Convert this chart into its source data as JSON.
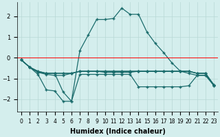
{
  "xlabel": "Humidex (Indice chaleur)",
  "bg_color": "#d4eeed",
  "grid_color": "#b8d8d5",
  "line_color": "#1a6b6b",
  "xlim": [
    -0.5,
    23.5
  ],
  "ylim": [
    -2.6,
    2.7
  ],
  "yticks": [
    -2,
    -1,
    0,
    1,
    2
  ],
  "xticks": [
    0,
    1,
    2,
    3,
    4,
    5,
    6,
    7,
    8,
    9,
    10,
    11,
    12,
    13,
    14,
    15,
    16,
    17,
    18,
    19,
    20,
    21,
    22,
    23
  ],
  "line1_x": [
    0,
    1,
    2,
    3,
    4,
    5,
    6,
    7,
    8,
    9,
    10,
    11,
    12,
    13,
    14,
    15,
    16,
    17,
    18,
    19,
    20,
    21,
    22,
    23
  ],
  "line1_y": [
    -0.1,
    -0.45,
    -0.65,
    -0.75,
    -0.75,
    -0.75,
    -0.75,
    -0.65,
    -0.65,
    -0.65,
    -0.65,
    -0.65,
    -0.65,
    -0.65,
    -0.65,
    -0.65,
    -0.65,
    -0.65,
    -0.65,
    -0.65,
    -0.65,
    -0.75,
    -0.75,
    -1.3
  ],
  "line2_x": [
    0,
    1,
    2,
    3,
    4,
    5,
    6,
    7,
    8,
    9,
    10,
    11,
    12,
    13,
    14,
    15,
    16,
    17,
    18,
    19,
    20,
    21,
    22,
    23
  ],
  "line2_y": [
    -0.1,
    -0.45,
    -0.8,
    -1.55,
    -1.6,
    -2.1,
    -2.1,
    -0.8,
    -0.8,
    -0.8,
    -0.8,
    -0.8,
    -0.8,
    -0.8,
    -1.4,
    -1.4,
    -1.4,
    -1.4,
    -1.4,
    -1.4,
    -1.35,
    -0.85,
    -0.85,
    -1.35
  ],
  "line3_x": [
    0,
    1,
    2,
    3,
    4,
    5,
    6,
    7,
    8,
    9,
    10,
    11,
    12,
    13,
    14,
    15,
    16,
    17,
    18,
    19,
    20,
    21,
    22,
    23
  ],
  "line3_y": [
    -0.1,
    -0.45,
    -0.7,
    -0.75,
    -0.75,
    -0.75,
    -0.75,
    -0.65,
    -0.65,
    -0.65,
    -0.65,
    -0.65,
    -0.65,
    -0.65,
    -0.65,
    -0.65,
    -0.65,
    -0.65,
    -0.65,
    -0.65,
    -0.65,
    -0.75,
    -0.75,
    -1.35
  ],
  "line4_x": [
    0,
    1,
    2,
    3,
    4,
    5,
    6,
    7,
    8,
    9,
    10,
    11,
    12,
    13,
    14,
    15,
    16,
    17,
    18,
    19,
    20,
    21,
    22,
    23
  ],
  "line4_y": [
    -0.1,
    -0.45,
    -0.7,
    -0.8,
    -0.85,
    -0.85,
    -0.75,
    -0.65,
    -0.65,
    -0.65,
    -0.7,
    -0.7,
    -0.7,
    -0.7,
    -0.65,
    -0.65,
    -0.65,
    -0.65,
    -0.65,
    -0.65,
    -0.65,
    -0.75,
    -0.75,
    -1.35
  ],
  "line_peak_x": [
    0,
    1,
    2,
    3,
    4,
    5,
    6,
    7,
    8,
    9,
    10,
    11,
    12,
    13,
    14,
    15,
    16,
    17,
    18,
    19,
    20,
    21,
    22,
    23
  ],
  "line_peak_y": [
    -0.1,
    -0.45,
    -0.65,
    -0.75,
    -0.75,
    -1.65,
    -2.1,
    0.35,
    1.1,
    1.85,
    1.85,
    1.9,
    2.4,
    2.1,
    2.1,
    1.25,
    0.7,
    0.25,
    -0.25,
    -0.65,
    -0.75,
    -0.85,
    -0.85,
    -1.3
  ]
}
